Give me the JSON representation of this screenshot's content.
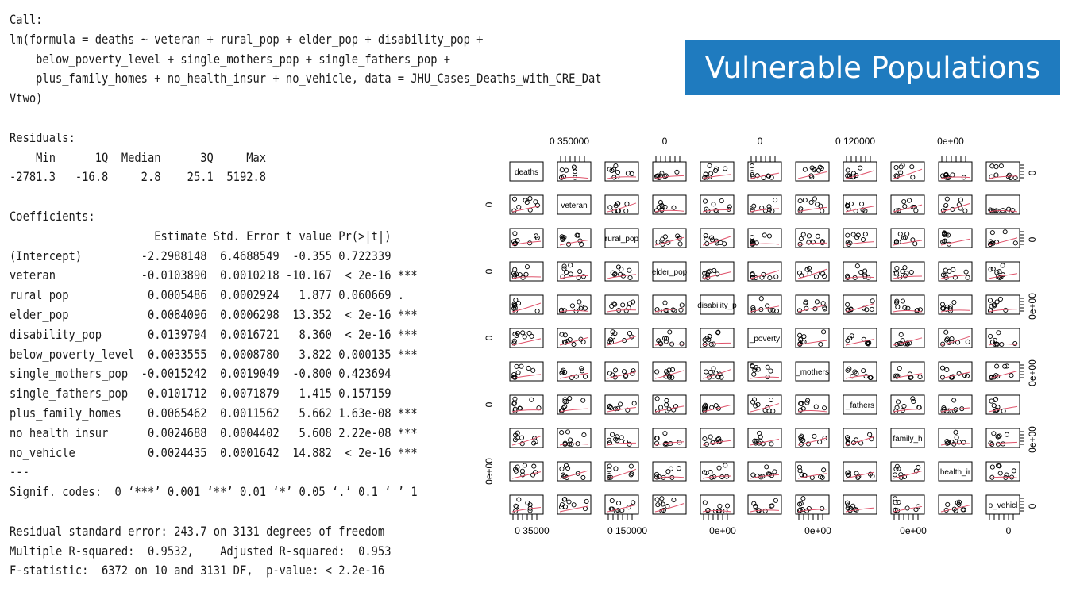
{
  "slide": {
    "title": "Vulnerable Populations"
  },
  "regression": {
    "call_label": "Call:",
    "formula_lines": [
      "lm(formula = deaths ~ veteran + rural_pop + elder_pop + disability_pop +",
      "    below_poverty_level + single_mothers_pop + single_fathers_pop +",
      "    plus_family_homes + no_health_insur + no_vehicle, data = JHU_Cases_Deaths_with_CRE_Dat",
      "Vtwo)"
    ],
    "residuals_label": "Residuals:",
    "residuals_header": "    Min      1Q  Median      3Q     Max ",
    "residuals_values": "-2781.3   -16.8     2.8    25.1  5192.8 ",
    "coefficients_label": "Coefficients:",
    "coefficients_header": "                      Estimate Std. Error t value Pr(>|t|)    ",
    "coefficient_rows": [
      "(Intercept)         -2.2988148  6.4688549  -0.355 0.722339    ",
      "veteran             -0.0103890  0.0010218 -10.167  < 2e-16 ***",
      "rural_pop            0.0005486  0.0002924   1.877 0.060669 .  ",
      "elder_pop            0.0084096  0.0006298  13.352  < 2e-16 ***",
      "disability_pop       0.0139794  0.0016721   8.360  < 2e-16 ***",
      "below_poverty_level  0.0033555  0.0008780   3.822 0.000135 ***",
      "single_mothers_pop  -0.0015242  0.0019049  -0.800 0.423694    ",
      "single_fathers_pop   0.0101712  0.0071879   1.415 0.157159    ",
      "plus_family_homes    0.0065462  0.0011562   5.662 1.63e-08 ***",
      "no_health_insur      0.0024688  0.0004402   5.608 2.22e-08 ***",
      "no_vehicle           0.0024435  0.0001642  14.882  < 2e-16 ***"
    ],
    "separator": "---",
    "signif_codes": "Signif. codes:  0 ‘***’ 0.001 ‘**’ 0.01 ‘*’ 0.05 ‘.’ 0.1 ‘ ’ 1",
    "residual_se": "Residual standard error: 243.7 on 3131 degrees of freedom",
    "r_squared": "Multiple R-squared:  0.9532,\tAdjusted R-squared:  0.953 ",
    "f_statistic": "F-statistic:  6372 on 10 and 3131 DF,  p-value: < 2.2e-16"
  },
  "chart_data": {
    "type": "scatter",
    "subtype": "pairs-matrix",
    "diagonal_labels": [
      "deaths",
      "veteran",
      "rural_pop",
      "elder_pop",
      "disability_p",
      "_poverty",
      "_mothers",
      "_fathers",
      "family_h",
      "health_ir",
      "o_vehicl"
    ],
    "variables": [
      "deaths",
      "veteran",
      "rural_pop",
      "elder_pop",
      "disability_pop",
      "below_poverty_level",
      "single_mothers_pop",
      "single_fathers_pop",
      "plus_family_homes",
      "no_health_insur",
      "no_vehicle"
    ],
    "top_axis_labels": [
      {
        "column": 1,
        "text": "0  350000"
      },
      {
        "column": 3,
        "text": "0"
      },
      {
        "column": 5,
        "text": "0"
      },
      {
        "column": 7,
        "text": "0  120000"
      },
      {
        "column": 9,
        "text": "0e+00"
      }
    ],
    "bottom_axis_labels": [
      {
        "column": 0,
        "text": "0   35000"
      },
      {
        "column": 2,
        "text": "0  150000"
      },
      {
        "column": 4,
        "text": "0e+00"
      },
      {
        "column": 6,
        "text": "0e+00"
      },
      {
        "column": 8,
        "text": "0e+00"
      },
      {
        "column": 10,
        "text": "0"
      }
    ],
    "left_axis_labels": [
      {
        "row": 1,
        "text": "0"
      },
      {
        "row": 3,
        "text": "0"
      },
      {
        "row": 5,
        "text": "0"
      },
      {
        "row": 7,
        "text": "0"
      },
      {
        "row": 9,
        "text": "0e+00"
      }
    ],
    "right_axis_labels": [
      {
        "row": 0,
        "text": "0"
      },
      {
        "row": 2,
        "text": "0"
      },
      {
        "row": 4,
        "text": "0e+00"
      },
      {
        "row": 6,
        "text": "0e+00"
      },
      {
        "row": 8,
        "text": "0e+00"
      },
      {
        "row": 10,
        "text": "0"
      }
    ],
    "point_color": "#000000",
    "smoother_color": "#df536b",
    "panel_border_color": "#000000"
  }
}
